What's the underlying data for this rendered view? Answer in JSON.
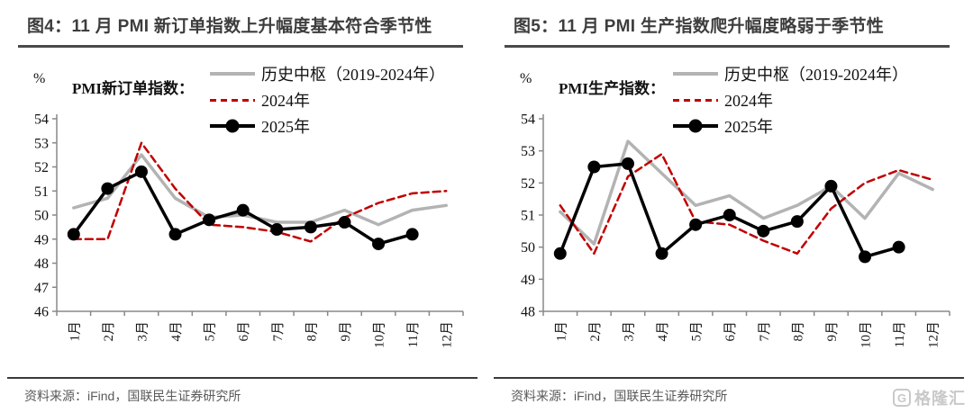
{
  "colors": {
    "history_line": "#b3b3b3",
    "line_2024": "#c00000",
    "line_2025": "#000000",
    "title_text": "#3d3d3d",
    "title_rule": "#4a4a4a",
    "source_text": "#595959",
    "axis": "#888888",
    "watermark": "#c9c9c9"
  },
  "watermark": {
    "logo_letter": "G",
    "brand": "格隆汇"
  },
  "chart_data": [
    {
      "type": "line",
      "title": "图4：11 月 PMI 新订单指数上升幅度基本符合季节性",
      "indicator_label": "PMI新订单指数：",
      "unit": "%",
      "source": "资料来源：iFind，国联民生证券研究所",
      "categories": [
        "1月",
        "2月",
        "3月",
        "4月",
        "5月",
        "6月",
        "7月",
        "8月",
        "9月",
        "10月",
        "11月",
        "12月"
      ],
      "ylim": [
        46,
        54
      ],
      "ytick_step": 1,
      "grid": false,
      "legend_position": "top-right",
      "series": [
        {
          "name": "历史中枢（2019-2024年）",
          "color": "#b3b3b3",
          "style": "solid",
          "marker": false,
          "values": [
            50.3,
            50.7,
            52.5,
            50.7,
            49.9,
            50.0,
            49.7,
            49.7,
            50.2,
            49.6,
            50.2,
            50.4
          ]
        },
        {
          "name": "2024年",
          "color": "#c00000",
          "style": "dashed",
          "marker": false,
          "values": [
            49.0,
            49.0,
            53.0,
            51.1,
            49.6,
            49.5,
            49.3,
            48.9,
            49.9,
            50.5,
            50.9,
            51.0
          ]
        },
        {
          "name": "2025年",
          "color": "#000000",
          "style": "solid",
          "marker": true,
          "values": [
            49.2,
            51.1,
            51.8,
            49.2,
            49.8,
            50.2,
            49.4,
            49.5,
            49.7,
            48.8,
            49.2,
            null
          ]
        }
      ]
    },
    {
      "type": "line",
      "title": "图5：11 月 PMI 生产指数爬升幅度略弱于季节性",
      "indicator_label": "PMI生产指数：",
      "unit": "%",
      "source": "资料来源：iFind，国联民生证券研究所",
      "categories": [
        "1月",
        "2月",
        "3月",
        "4月",
        "5月",
        "6月",
        "7月",
        "8月",
        "9月",
        "10月",
        "11月",
        "12月"
      ],
      "ylim": [
        48,
        54
      ],
      "ytick_step": 1,
      "grid": false,
      "legend_position": "top-right",
      "series": [
        {
          "name": "历史中枢（2019-2024年）",
          "color": "#b3b3b3",
          "style": "solid",
          "marker": false,
          "values": [
            51.1,
            50.1,
            53.3,
            52.3,
            51.3,
            51.6,
            50.9,
            51.3,
            51.9,
            50.9,
            52.3,
            51.8
          ]
        },
        {
          "name": "2024年",
          "color": "#c00000",
          "style": "dashed",
          "marker": false,
          "values": [
            51.3,
            49.8,
            52.2,
            52.9,
            50.8,
            50.7,
            50.2,
            49.8,
            51.2,
            52.0,
            52.4,
            52.1
          ]
        },
        {
          "name": "2025年",
          "color": "#000000",
          "style": "solid",
          "marker": true,
          "values": [
            49.8,
            52.5,
            52.6,
            49.8,
            50.7,
            51.0,
            50.5,
            50.8,
            51.9,
            49.7,
            50.0,
            null
          ]
        }
      ]
    }
  ]
}
